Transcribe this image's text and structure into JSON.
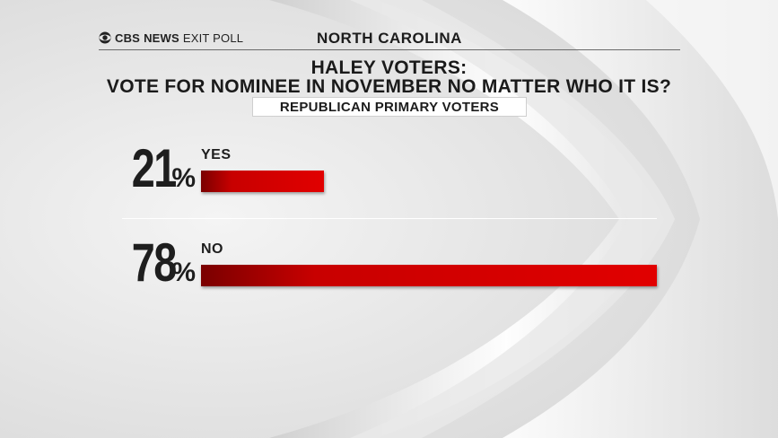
{
  "header": {
    "brand_cbs": "CBS",
    "brand_news": "NEWS",
    "brand_exit": "EXIT POLL",
    "state": "NORTH CAROLINA"
  },
  "title_line1": "HALEY VOTERS:",
  "title_line2": "VOTE FOR NOMINEE IN NOVEMBER NO MATTER WHO IT IS?",
  "subtitle": "REPUBLICAN PRIMARY VOTERS",
  "colors": {
    "bar": "#e10000",
    "bar_dark": "#7a0000",
    "text": "#1e1e1e"
  },
  "chart_data": {
    "type": "bar",
    "orientation": "horizontal",
    "categories": [
      "YES",
      "NO"
    ],
    "values": [
      21,
      78
    ],
    "value_suffix": "%",
    "title": "HALEY VOTERS: VOTE FOR NOMINEE IN NOVEMBER NO MATTER WHO IT IS?",
    "subtitle": "REPUBLICAN PRIMARY VOTERS",
    "xlim": [
      0,
      100
    ],
    "grid": false
  }
}
